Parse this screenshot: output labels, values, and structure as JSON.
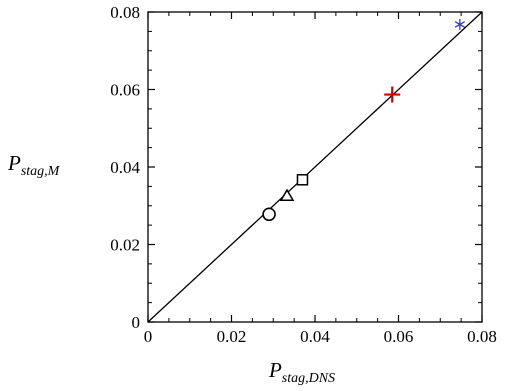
{
  "chart_data": {
    "type": "scatter",
    "title": "",
    "xlabel": {
      "main": "P",
      "sub": "stag,DNS"
    },
    "ylabel": {
      "main": "P",
      "sub": "stag,M"
    },
    "xlim": [
      0,
      0.08
    ],
    "ylim": [
      0,
      0.08
    ],
    "xticks": [
      "0",
      "0.02",
      "0.04",
      "0.06",
      "0.08"
    ],
    "yticks": [
      "0",
      "0.02",
      "0.04",
      "0.06",
      "0.08"
    ],
    "grid": false,
    "legend": "none",
    "reference_line": {
      "x": [
        0,
        0.08
      ],
      "y": [
        0,
        0.08
      ],
      "color": "#000000"
    },
    "points": [
      {
        "marker": "circle",
        "x": 0.029,
        "y": 0.0278,
        "color": "#000000"
      },
      {
        "marker": "triangle",
        "x": 0.0333,
        "y": 0.0325,
        "color": "#000000"
      },
      {
        "marker": "square",
        "x": 0.037,
        "y": 0.0367,
        "color": "#000000"
      },
      {
        "marker": "plus",
        "x": 0.0585,
        "y": 0.0587,
        "color": "#cc0000"
      },
      {
        "marker": "asterisk",
        "x": 0.0747,
        "y": 0.0768,
        "color": "#3333cc"
      }
    ]
  }
}
